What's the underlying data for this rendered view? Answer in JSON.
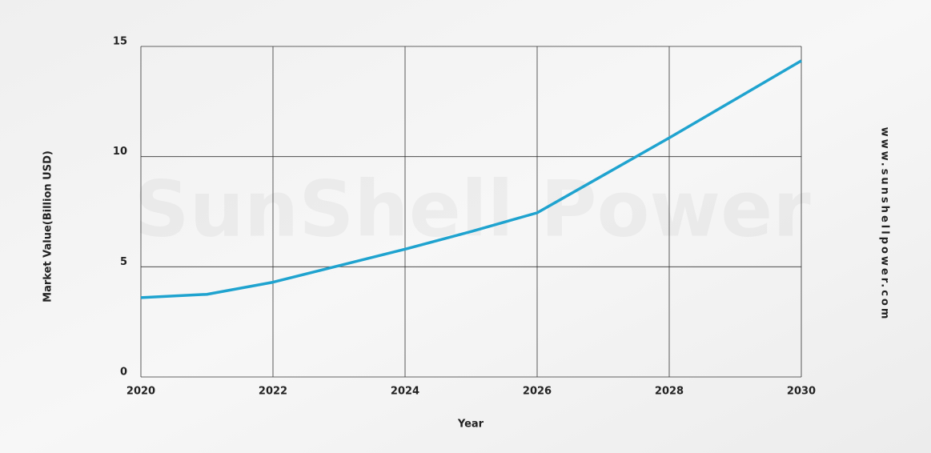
{
  "chart_data": {
    "type": "line",
    "watermark": "SunShell Power",
    "side_text": "www.sunshellpower.com",
    "xlabel": "Year",
    "ylabel": "Market Value(Billion USD)",
    "x": [
      2020,
      2021,
      2022,
      2023,
      2024,
      2025,
      2026,
      2027,
      2028,
      2029,
      2030
    ],
    "series": [
      {
        "color": "#1fa3cf",
        "values": [
          3.6,
          3.75,
          4.3,
          5.05,
          5.8,
          6.6,
          7.45,
          9.15,
          10.85,
          12.6,
          14.35
        ]
      }
    ],
    "xlim": [
      2020,
      2030
    ],
    "xticks": [
      2020,
      2022,
      2024,
      2026,
      2028,
      2030
    ],
    "ylim": [
      0,
      15
    ],
    "yticks": [
      0,
      5,
      10,
      15
    ],
    "grid": true
  }
}
